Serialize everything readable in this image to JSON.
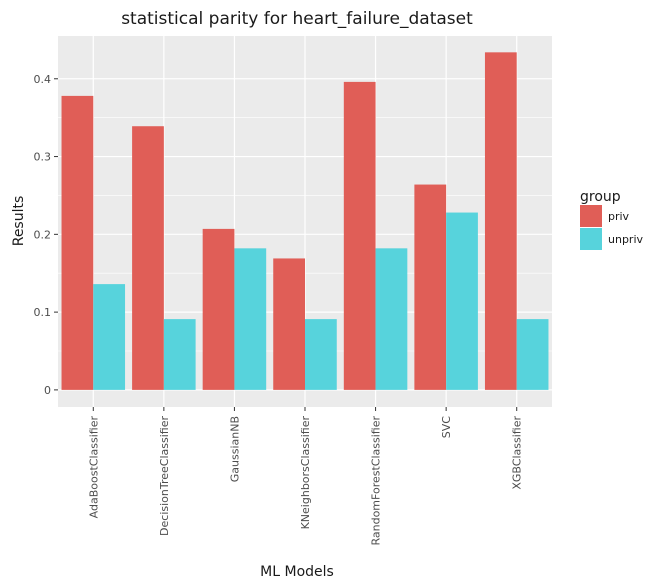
{
  "chart_data": {
    "type": "bar",
    "title": "statistical parity for heart_failure_dataset",
    "xlabel": "ML Models",
    "ylabel": "Results",
    "categories": [
      "AdaBoostClassifier",
      "DecisionTreeClassifier",
      "GaussianNB",
      "KNeighborsClassifier",
      "RandomForestClassifier",
      "SVC",
      "XGBClassifier"
    ],
    "series": [
      {
        "name": "priv",
        "color": "#e05e57",
        "values": [
          0.378,
          0.339,
          0.207,
          0.169,
          0.396,
          0.264,
          0.434
        ]
      },
      {
        "name": "unpriv",
        "color": "#57d3dc",
        "values": [
          0.136,
          0.091,
          0.182,
          0.091,
          0.182,
          0.228,
          0.091
        ]
      }
    ],
    "yticks": [
      0,
      0.1,
      0.2,
      0.3,
      0.4
    ],
    "ytick_labels": [
      "0",
      "0.1",
      "0.2",
      "0.3",
      "0.4"
    ],
    "ylim": [
      -0.022,
      0.455
    ],
    "grid": true,
    "legend": {
      "title": "group",
      "placement": "right"
    }
  }
}
